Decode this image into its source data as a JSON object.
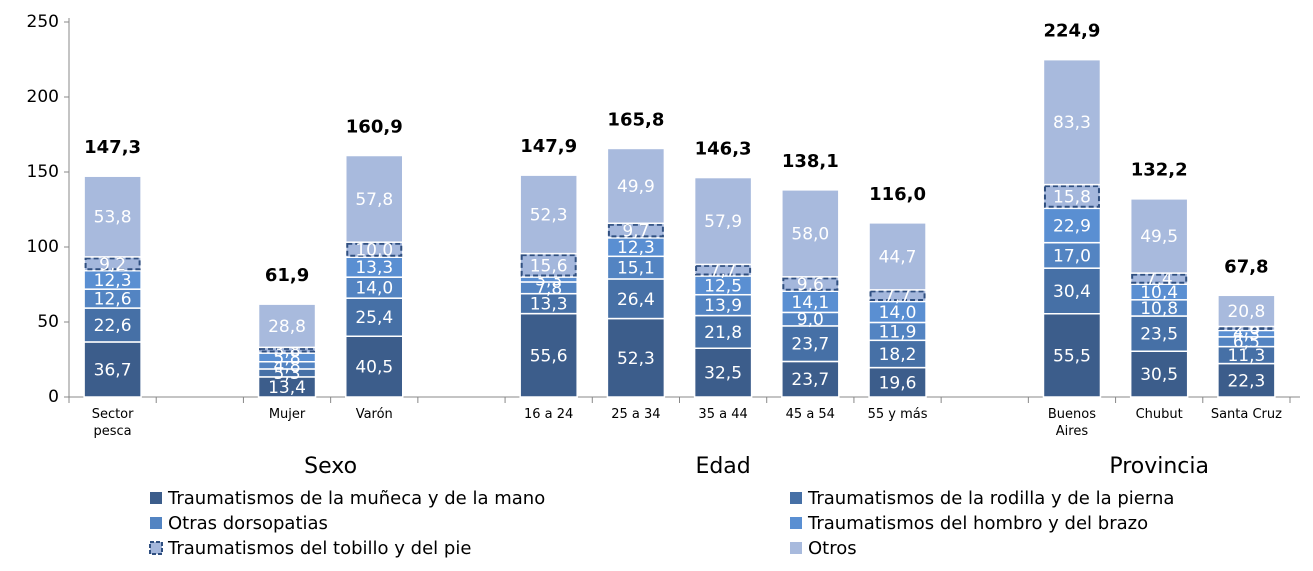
{
  "chart_data": {
    "type": "stacked_bar",
    "categories": [
      "Sector\npesca",
      null,
      "Mujer",
      "Varón",
      null,
      "16 a 24",
      "25 a 34",
      "35 a 44",
      "45 a 54",
      "55 y más",
      null,
      "Buenos\nAires",
      "Chubut",
      "Santa Cruz"
    ],
    "groups": [
      "Sexo",
      "Edad",
      "Provincia"
    ],
    "ylim": [
      0,
      250
    ],
    "yticks": [
      0,
      50,
      100,
      150,
      200,
      250
    ],
    "grid": false,
    "series": [
      {
        "name": "Traumatismos de la muñeca y de la mano",
        "color": "#3c5d8b",
        "values": [
          36.7,
          null,
          13.4,
          40.5,
          null,
          55.6,
          52.3,
          32.5,
          23.7,
          19.6,
          null,
          55.5,
          30.5,
          22.3
        ],
        "value_labels": [
          "36,7",
          null,
          "13,4",
          "40,5",
          null,
          "55,6",
          "52,3",
          "32,5",
          "23,7",
          "19,6",
          null,
          "55,5",
          "30,5",
          "22,3"
        ]
      },
      {
        "name": "Traumatismos de la rodilla y de la pierna",
        "color": "#4670a6",
        "values": [
          22.6,
          null,
          5.3,
          25.4,
          null,
          13.3,
          26.4,
          21.8,
          23.7,
          18.2,
          null,
          30.4,
          23.5,
          11.3
        ],
        "value_labels": [
          "22,6",
          null,
          "5,3",
          "25,4",
          null,
          "13,3",
          "26,4",
          "21,8",
          "23,7",
          "18,2",
          null,
          "30,4",
          "23,5",
          "11,3"
        ]
      },
      {
        "name": "Otras dorsopatias",
        "color": "#5384c2",
        "values": [
          12.6,
          null,
          4.8,
          14.0,
          null,
          7.8,
          15.1,
          13.9,
          9.0,
          11.9,
          null,
          17.0,
          10.8,
          6.5
        ],
        "value_labels": [
          "12,6",
          null,
          "4,8",
          "14,0",
          null,
          "7,8",
          "15,1",
          "13,9",
          "9,0",
          "11,9",
          null,
          "17,0",
          "10,8",
          "6,5"
        ]
      },
      {
        "name": "Traumatismos del hombro y del brazo",
        "color": "#5a8fd2",
        "values": [
          12.3,
          null,
          5.8,
          13.3,
          null,
          3.3,
          12.3,
          12.5,
          14.1,
          14.0,
          null,
          22.9,
          10.4,
          4.3
        ],
        "value_labels": [
          "12,3",
          null,
          "5,8",
          "13,3",
          null,
          "3,3",
          "12,3",
          "12,5",
          "14,1",
          "14,0",
          null,
          "22,9",
          "10,4",
          "4,3"
        ]
      },
      {
        "name": "Traumatismos del tobillo y del pie",
        "color": "#a4b7dc",
        "border_color": "#2f4f80",
        "border_style": "dashed",
        "values": [
          9.2,
          null,
          3.8,
          10.0,
          null,
          15.6,
          9.7,
          7.7,
          9.6,
          7.7,
          null,
          15.8,
          7.4,
          2.6
        ],
        "value_labels": [
          "9,2",
          null,
          "3,8",
          "10,0",
          null,
          "15,6",
          "9,7",
          "7,7",
          "9,6",
          "7,7",
          null,
          "15,8",
          "7,4",
          "2,6"
        ]
      },
      {
        "name": "Otros",
        "color": "#a8badd",
        "values": [
          53.8,
          null,
          28.8,
          57.8,
          null,
          52.3,
          49.9,
          57.9,
          58.0,
          44.7,
          null,
          83.3,
          49.5,
          20.8
        ],
        "value_labels": [
          "53,8",
          null,
          "28,8",
          "57,8",
          null,
          "52,3",
          "49,9",
          "57,9",
          "58,0",
          "44,7",
          null,
          "83,3",
          "49,5",
          "20,8"
        ]
      }
    ],
    "totals": [
      147.3,
      null,
      61.9,
      160.9,
      null,
      147.9,
      165.8,
      146.3,
      138.1,
      116.0,
      null,
      224.9,
      132.2,
      67.8
    ],
    "total_labels": [
      "147,3",
      null,
      "61,9",
      "160,9",
      null,
      "147,9",
      "165,8",
      "146,3",
      "138,1",
      "116,0",
      null,
      "224,9",
      "132,2",
      "67,8"
    ]
  }
}
